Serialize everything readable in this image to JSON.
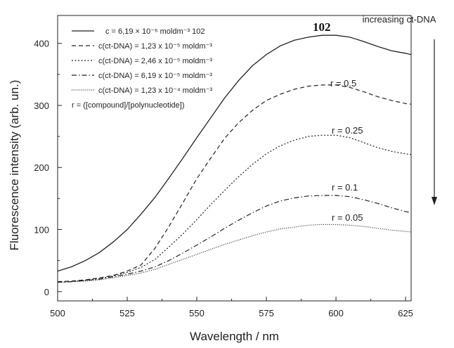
{
  "chart_data": {
    "type": "line",
    "xlabel": "Wavelength / nm",
    "ylabel": "Fluorescence intensity (arb. un.)",
    "xlim": [
      500,
      627
    ],
    "ylim": [
      -15,
      445
    ],
    "x_ticks": [
      500,
      525,
      550,
      575,
      600,
      625
    ],
    "y_ticks": [
      0,
      100,
      200,
      300,
      400
    ],
    "grid": false,
    "legend_position": "top-left",
    "x": [
      500,
      505,
      510,
      515,
      520,
      525,
      530,
      535,
      540,
      545,
      550,
      555,
      560,
      565,
      570,
      575,
      580,
      585,
      590,
      595,
      600,
      605,
      610,
      615,
      620,
      625,
      627
    ],
    "series": [
      {
        "legend": "c = 6,19 × 10⁻⁶ moldm⁻³ 102",
        "style": "solid",
        "r_label": "",
        "values": [
          33,
          40,
          50,
          63,
          80,
          100,
          125,
          152,
          183,
          215,
          248,
          280,
          312,
          340,
          364,
          382,
          396,
          405,
          410,
          413,
          413,
          410,
          403,
          395,
          388,
          384,
          382
        ]
      },
      {
        "legend": "c(ct-DNA) = 1,23 x 10⁻⁵ moldm⁻³",
        "style": "dashed",
        "r_label": "r = 0.5",
        "values": [
          16,
          17,
          19,
          22,
          26,
          33,
          43,
          70,
          105,
          143,
          182,
          215,
          247,
          272,
          292,
          308,
          318,
          326,
          331,
          333,
          333,
          329,
          322,
          314,
          308,
          303,
          302
        ]
      },
      {
        "legend": "c(ct-DNA) = 2,46 x 10⁻⁵ moldm⁻³",
        "style": "dotted",
        "r_label": "r = 0.25",
        "values": [
          15,
          16,
          18,
          21,
          25,
          31,
          39,
          52,
          72,
          93,
          116,
          140,
          163,
          185,
          205,
          222,
          235,
          244,
          250,
          252,
          252,
          248,
          240,
          232,
          226,
          222,
          221
        ]
      },
      {
        "legend": "c(ct-DNA) = 6,19 x 10⁻⁵ moldm⁻³",
        "style": "dashdot",
        "r_label": "r = 0.1",
        "values": [
          15,
          16,
          18,
          20,
          24,
          28,
          33,
          40,
          50,
          62,
          75,
          88,
          102,
          115,
          127,
          138,
          146,
          151,
          154,
          155,
          155,
          153,
          148,
          142,
          135,
          129,
          127
        ]
      },
      {
        "legend": "c(ct-DNA) = 1,23 x 10⁻⁴ moldm⁻³",
        "style": "fine-dotted",
        "r_label": "r = 0.05",
        "values": [
          15,
          16,
          17,
          19,
          22,
          26,
          30,
          36,
          44,
          52,
          60,
          68,
          76,
          83,
          90,
          96,
          101,
          104,
          107,
          108,
          108,
          107,
          105,
          102,
          99,
          97,
          96
        ]
      }
    ],
    "legend_note": "r = ([compound]/[polynucleotide])",
    "compound_label": "102",
    "arrow_label": "increasing ct-DNA"
  }
}
